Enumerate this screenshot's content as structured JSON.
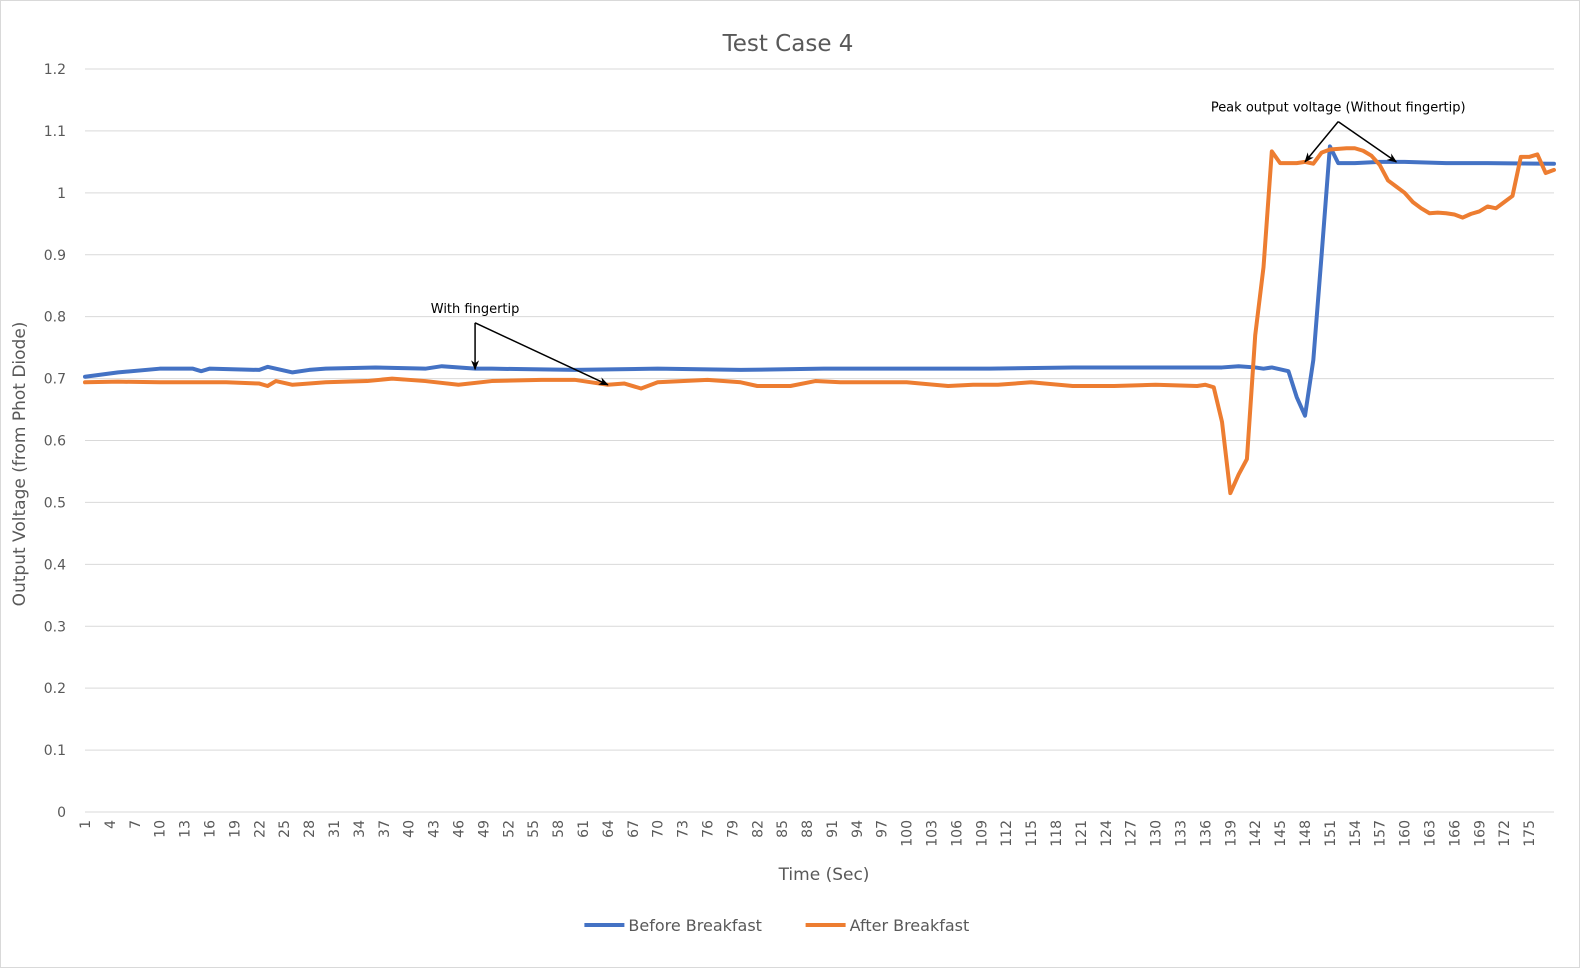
{
  "chart_data": {
    "type": "line",
    "title": "Test Case 4",
    "xlabel": "Time (Sec)",
    "ylabel": "Output Voltage (from Phot Diode)",
    "ylim": [
      0,
      1.2
    ],
    "y_ticks": [
      "0",
      "0.1",
      "0.2",
      "0.3",
      "0.4",
      "0.5",
      "0.6",
      "0.7",
      "0.8",
      "0.9",
      "1",
      "1.1",
      "1.2"
    ],
    "x_range": [
      1,
      178
    ],
    "x_tick_labels": [
      "1",
      "4",
      "7",
      "10",
      "13",
      "16",
      "19",
      "22",
      "25",
      "28",
      "31",
      "34",
      "37",
      "40",
      "43",
      "46",
      "49",
      "52",
      "55",
      "58",
      "61",
      "64",
      "67",
      "70",
      "73",
      "76",
      "79",
      "82",
      "85",
      "88",
      "91",
      "94",
      "97",
      "100",
      "103",
      "106",
      "109",
      "112",
      "115",
      "118",
      "121",
      "124",
      "127",
      "130",
      "133",
      "136",
      "139",
      "142",
      "145",
      "148",
      "151",
      "154",
      "157",
      "160",
      "163",
      "166",
      "169",
      "172",
      "175"
    ],
    "grid": true,
    "legend_position": "bottom",
    "series": [
      {
        "name": "Before Breakfast",
        "color": "#4472c4",
        "points": [
          [
            1,
            0.703
          ],
          [
            5,
            0.71
          ],
          [
            10,
            0.716
          ],
          [
            14,
            0.716
          ],
          [
            15,
            0.712
          ],
          [
            16,
            0.716
          ],
          [
            22,
            0.714
          ],
          [
            23,
            0.719
          ],
          [
            24,
            0.716
          ],
          [
            26,
            0.71
          ],
          [
            28,
            0.714
          ],
          [
            30,
            0.716
          ],
          [
            36,
            0.718
          ],
          [
            42,
            0.716
          ],
          [
            44,
            0.72
          ],
          [
            48,
            0.716
          ],
          [
            50,
            0.716
          ],
          [
            60,
            0.714
          ],
          [
            70,
            0.716
          ],
          [
            80,
            0.714
          ],
          [
            90,
            0.716
          ],
          [
            100,
            0.716
          ],
          [
            110,
            0.716
          ],
          [
            120,
            0.718
          ],
          [
            130,
            0.718
          ],
          [
            138,
            0.718
          ],
          [
            140,
            0.72
          ],
          [
            142,
            0.718
          ],
          [
            143,
            0.716
          ],
          [
            144,
            0.718
          ],
          [
            145,
            0.715
          ],
          [
            146,
            0.712
          ],
          [
            147,
            0.67
          ],
          [
            148,
            0.64
          ],
          [
            149,
            0.73
          ],
          [
            150,
            0.9
          ],
          [
            151,
            1.075
          ],
          [
            152,
            1.048
          ],
          [
            154,
            1.048
          ],
          [
            157,
            1.05
          ],
          [
            160,
            1.05
          ],
          [
            165,
            1.048
          ],
          [
            170,
            1.048
          ],
          [
            178,
            1.047
          ]
        ]
      },
      {
        "name": "After Breakfast",
        "color": "#ed7d31",
        "points": [
          [
            1,
            0.694
          ],
          [
            5,
            0.695
          ],
          [
            10,
            0.694
          ],
          [
            18,
            0.694
          ],
          [
            22,
            0.692
          ],
          [
            23,
            0.688
          ],
          [
            24,
            0.696
          ],
          [
            26,
            0.69
          ],
          [
            30,
            0.694
          ],
          [
            35,
            0.696
          ],
          [
            38,
            0.7
          ],
          [
            42,
            0.696
          ],
          [
            46,
            0.69
          ],
          [
            50,
            0.696
          ],
          [
            56,
            0.698
          ],
          [
            60,
            0.698
          ],
          [
            62,
            0.694
          ],
          [
            64,
            0.69
          ],
          [
            66,
            0.692
          ],
          [
            68,
            0.684
          ],
          [
            70,
            0.694
          ],
          [
            76,
            0.698
          ],
          [
            80,
            0.694
          ],
          [
            82,
            0.688
          ],
          [
            86,
            0.688
          ],
          [
            89,
            0.696
          ],
          [
            92,
            0.694
          ],
          [
            95,
            0.694
          ],
          [
            100,
            0.694
          ],
          [
            105,
            0.688
          ],
          [
            108,
            0.69
          ],
          [
            111,
            0.69
          ],
          [
            115,
            0.694
          ],
          [
            120,
            0.688
          ],
          [
            125,
            0.688
          ],
          [
            130,
            0.69
          ],
          [
            135,
            0.688
          ],
          [
            136,
            0.69
          ],
          [
            137,
            0.686
          ],
          [
            138,
            0.63
          ],
          [
            139,
            0.515
          ],
          [
            140,
            0.545
          ],
          [
            141,
            0.57
          ],
          [
            142,
            0.77
          ],
          [
            143,
            0.88
          ],
          [
            144,
            1.067
          ],
          [
            145,
            1.048
          ],
          [
            147,
            1.048
          ],
          [
            148,
            1.05
          ],
          [
            149,
            1.047
          ],
          [
            150,
            1.065
          ],
          [
            151,
            1.07
          ],
          [
            153,
            1.072
          ],
          [
            154,
            1.072
          ],
          [
            155,
            1.068
          ],
          [
            156,
            1.06
          ],
          [
            157,
            1.045
          ],
          [
            158,
            1.02
          ],
          [
            159,
            1.01
          ],
          [
            160,
            1.0
          ],
          [
            161,
            0.985
          ],
          [
            162,
            0.975
          ],
          [
            163,
            0.967
          ],
          [
            164,
            0.968
          ],
          [
            165,
            0.967
          ],
          [
            166,
            0.965
          ],
          [
            167,
            0.96
          ],
          [
            168,
            0.966
          ],
          [
            169,
            0.97
          ],
          [
            170,
            0.978
          ],
          [
            171,
            0.975
          ],
          [
            172,
            0.985
          ],
          [
            173,
            0.995
          ],
          [
            174,
            1.058
          ],
          [
            175,
            1.058
          ],
          [
            176,
            1.062
          ],
          [
            177,
            1.032
          ],
          [
            178,
            1.037
          ]
        ]
      }
    ],
    "annotations": [
      {
        "text": "With fingertip",
        "anchor": [
          48,
          0.79
        ],
        "arrow_targets": [
          [
            48,
            0.715
          ],
          [
            64,
            0.69
          ]
        ]
      },
      {
        "text": "Peak output voltage (Without fingertip)",
        "anchor": [
          152,
          1.115
        ],
        "arrow_targets": [
          [
            148,
            1.05
          ],
          [
            159,
            1.05
          ]
        ]
      }
    ]
  }
}
